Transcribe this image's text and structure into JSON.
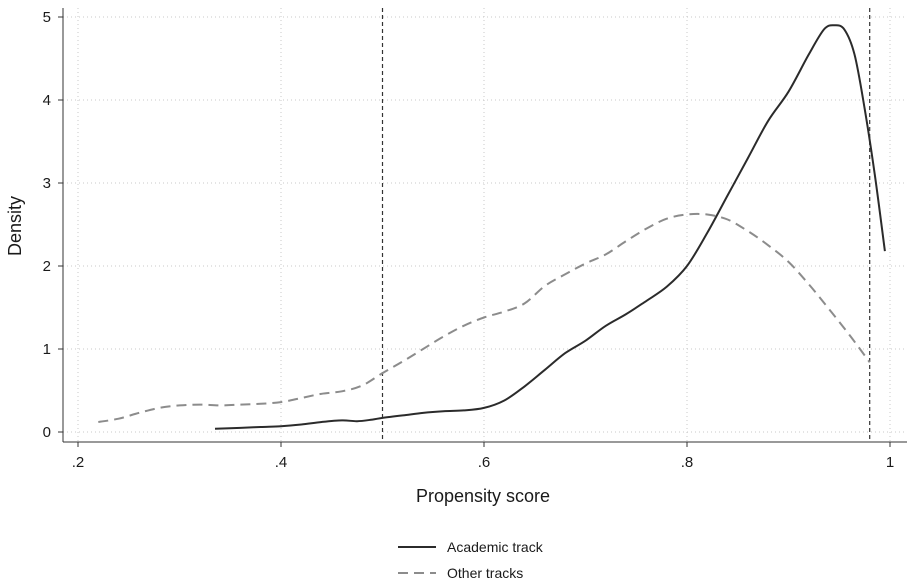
{
  "chart_data": {
    "type": "line",
    "title": "",
    "xlabel": "Propensity score",
    "ylabel": "Density",
    "xlim": [
      0.2,
      1.0
    ],
    "ylim": [
      0,
      5
    ],
    "x_ticks": [
      0.2,
      0.4,
      0.6,
      0.8,
      1.0
    ],
    "x_tick_labels": [
      ".2",
      ".4",
      ".6",
      ".8",
      "1"
    ],
    "y_ticks": [
      0,
      1,
      2,
      3,
      4,
      5
    ],
    "y_tick_labels": [
      "0",
      "1",
      "2",
      "3",
      "4",
      "5"
    ],
    "grid": true,
    "legend_position": "bottom-center",
    "reference_lines_x": [
      0.5,
      0.98
    ],
    "series": [
      {
        "name": "Academic track",
        "style": "solid",
        "color": "#2b2b2b",
        "points": [
          [
            0.335,
            0.04
          ],
          [
            0.36,
            0.05
          ],
          [
            0.38,
            0.06
          ],
          [
            0.4,
            0.07
          ],
          [
            0.42,
            0.09
          ],
          [
            0.44,
            0.12
          ],
          [
            0.46,
            0.14
          ],
          [
            0.475,
            0.13
          ],
          [
            0.49,
            0.15
          ],
          [
            0.5,
            0.17
          ],
          [
            0.52,
            0.2
          ],
          [
            0.54,
            0.23
          ],
          [
            0.56,
            0.25
          ],
          [
            0.58,
            0.26
          ],
          [
            0.6,
            0.29
          ],
          [
            0.62,
            0.38
          ],
          [
            0.64,
            0.55
          ],
          [
            0.66,
            0.75
          ],
          [
            0.68,
            0.95
          ],
          [
            0.7,
            1.1
          ],
          [
            0.72,
            1.28
          ],
          [
            0.74,
            1.42
          ],
          [
            0.76,
            1.58
          ],
          [
            0.78,
            1.75
          ],
          [
            0.8,
            2.0
          ],
          [
            0.82,
            2.4
          ],
          [
            0.84,
            2.85
          ],
          [
            0.86,
            3.3
          ],
          [
            0.88,
            3.75
          ],
          [
            0.9,
            4.1
          ],
          [
            0.92,
            4.55
          ],
          [
            0.935,
            4.85
          ],
          [
            0.945,
            4.9
          ],
          [
            0.955,
            4.85
          ],
          [
            0.965,
            4.55
          ],
          [
            0.975,
            3.9
          ],
          [
            0.985,
            3.1
          ],
          [
            0.995,
            2.18
          ]
        ]
      },
      {
        "name": "Other tracks",
        "style": "dashed",
        "color": "#8c8c8c",
        "points": [
          [
            0.22,
            0.12
          ],
          [
            0.24,
            0.16
          ],
          [
            0.26,
            0.23
          ],
          [
            0.28,
            0.29
          ],
          [
            0.3,
            0.32
          ],
          [
            0.32,
            0.33
          ],
          [
            0.34,
            0.32
          ],
          [
            0.36,
            0.33
          ],
          [
            0.38,
            0.34
          ],
          [
            0.4,
            0.36
          ],
          [
            0.42,
            0.41
          ],
          [
            0.44,
            0.46
          ],
          [
            0.46,
            0.49
          ],
          [
            0.48,
            0.56
          ],
          [
            0.5,
            0.71
          ],
          [
            0.52,
            0.85
          ],
          [
            0.54,
            1.0
          ],
          [
            0.56,
            1.15
          ],
          [
            0.58,
            1.28
          ],
          [
            0.6,
            1.38
          ],
          [
            0.62,
            1.45
          ],
          [
            0.64,
            1.55
          ],
          [
            0.66,
            1.76
          ],
          [
            0.68,
            1.9
          ],
          [
            0.7,
            2.03
          ],
          [
            0.72,
            2.14
          ],
          [
            0.74,
            2.3
          ],
          [
            0.76,
            2.45
          ],
          [
            0.78,
            2.57
          ],
          [
            0.8,
            2.62
          ],
          [
            0.82,
            2.62
          ],
          [
            0.84,
            2.56
          ],
          [
            0.86,
            2.42
          ],
          [
            0.88,
            2.25
          ],
          [
            0.9,
            2.05
          ],
          [
            0.92,
            1.78
          ],
          [
            0.94,
            1.48
          ],
          [
            0.96,
            1.17
          ],
          [
            0.98,
            0.84
          ]
        ]
      }
    ]
  }
}
